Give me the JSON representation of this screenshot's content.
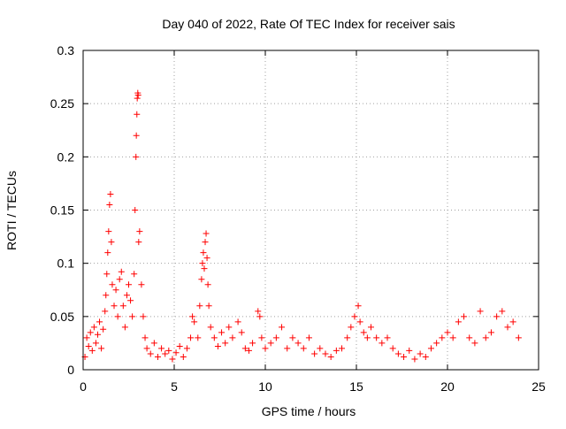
{
  "chart_data": {
    "type": "scatter",
    "title": "Day 040 of 2022, Rate Of TEC Index for receiver sais",
    "xlabel": "GPS time / hours",
    "ylabel": "ROTI / TECUs",
    "xlim": [
      0,
      25
    ],
    "ylim": [
      0,
      0.3
    ],
    "x_ticks": [
      0,
      5,
      10,
      15,
      20,
      25
    ],
    "x_tick_labels": [
      "0",
      "5",
      "10",
      "15",
      "20",
      "25"
    ],
    "y_ticks": [
      0,
      0.05,
      0.1,
      0.15,
      0.2,
      0.25,
      0.3
    ],
    "y_tick_labels": [
      "0",
      "0.05",
      "0.1",
      "0.15",
      "0.2",
      "0.25",
      "0.3"
    ],
    "grid": true,
    "marker": "+",
    "marker_color": "#ff0000",
    "series": [
      {
        "name": "",
        "points": [
          [
            0.1,
            0.012
          ],
          [
            0.2,
            0.03
          ],
          [
            0.3,
            0.022
          ],
          [
            0.4,
            0.035
          ],
          [
            0.5,
            0.018
          ],
          [
            0.6,
            0.04
          ],
          [
            0.7,
            0.025
          ],
          [
            0.8,
            0.033
          ],
          [
            0.9,
            0.045
          ],
          [
            1.0,
            0.02
          ],
          [
            1.1,
            0.038
          ],
          [
            1.2,
            0.055
          ],
          [
            1.25,
            0.07
          ],
          [
            1.3,
            0.09
          ],
          [
            1.35,
            0.11
          ],
          [
            1.4,
            0.13
          ],
          [
            1.45,
            0.155
          ],
          [
            1.5,
            0.165
          ],
          [
            1.55,
            0.12
          ],
          [
            1.6,
            0.08
          ],
          [
            1.7,
            0.06
          ],
          [
            1.8,
            0.075
          ],
          [
            1.9,
            0.05
          ],
          [
            2.0,
            0.085
          ],
          [
            2.1,
            0.092
          ],
          [
            2.2,
            0.06
          ],
          [
            2.3,
            0.04
          ],
          [
            2.4,
            0.07
          ],
          [
            2.5,
            0.08
          ],
          [
            2.6,
            0.065
          ],
          [
            2.7,
            0.05
          ],
          [
            2.8,
            0.09
          ],
          [
            2.85,
            0.15
          ],
          [
            2.9,
            0.2
          ],
          [
            2.92,
            0.22
          ],
          [
            2.95,
            0.24
          ],
          [
            2.97,
            0.255
          ],
          [
            3.0,
            0.26
          ],
          [
            3.02,
            0.258
          ],
          [
            3.05,
            0.12
          ],
          [
            3.1,
            0.13
          ],
          [
            3.2,
            0.08
          ],
          [
            3.3,
            0.05
          ],
          [
            3.4,
            0.03
          ],
          [
            3.5,
            0.02
          ],
          [
            3.7,
            0.015
          ],
          [
            3.9,
            0.025
          ],
          [
            4.1,
            0.012
          ],
          [
            4.3,
            0.02
          ],
          [
            4.5,
            0.015
          ],
          [
            4.7,
            0.018
          ],
          [
            4.9,
            0.01
          ],
          [
            5.1,
            0.016
          ],
          [
            5.3,
            0.022
          ],
          [
            5.5,
            0.012
          ],
          [
            5.7,
            0.02
          ],
          [
            5.9,
            0.03
          ],
          [
            6.0,
            0.05
          ],
          [
            6.1,
            0.045
          ],
          [
            6.3,
            0.03
          ],
          [
            6.4,
            0.06
          ],
          [
            6.5,
            0.085
          ],
          [
            6.55,
            0.1
          ],
          [
            6.6,
            0.11
          ],
          [
            6.65,
            0.095
          ],
          [
            6.7,
            0.12
          ],
          [
            6.75,
            0.128
          ],
          [
            6.8,
            0.105
          ],
          [
            6.85,
            0.08
          ],
          [
            6.9,
            0.06
          ],
          [
            7.0,
            0.04
          ],
          [
            7.2,
            0.03
          ],
          [
            7.4,
            0.022
          ],
          [
            7.6,
            0.035
          ],
          [
            7.8,
            0.025
          ],
          [
            8.0,
            0.04
          ],
          [
            8.2,
            0.03
          ],
          [
            8.5,
            0.045
          ],
          [
            8.7,
            0.035
          ],
          [
            8.9,
            0.02
          ],
          [
            9.1,
            0.018
          ],
          [
            9.3,
            0.025
          ],
          [
            9.6,
            0.055
          ],
          [
            9.7,
            0.05
          ],
          [
            9.8,
            0.03
          ],
          [
            10.0,
            0.02
          ],
          [
            10.3,
            0.025
          ],
          [
            10.6,
            0.03
          ],
          [
            10.9,
            0.04
          ],
          [
            11.2,
            0.02
          ],
          [
            11.5,
            0.03
          ],
          [
            11.8,
            0.025
          ],
          [
            12.1,
            0.02
          ],
          [
            12.4,
            0.03
          ],
          [
            12.7,
            0.015
          ],
          [
            13.0,
            0.02
          ],
          [
            13.3,
            0.015
          ],
          [
            13.6,
            0.012
          ],
          [
            13.9,
            0.018
          ],
          [
            14.2,
            0.02
          ],
          [
            14.5,
            0.03
          ],
          [
            14.7,
            0.04
          ],
          [
            14.9,
            0.05
          ],
          [
            15.1,
            0.06
          ],
          [
            15.2,
            0.045
          ],
          [
            15.4,
            0.035
          ],
          [
            15.6,
            0.03
          ],
          [
            15.8,
            0.04
          ],
          [
            16.1,
            0.03
          ],
          [
            16.4,
            0.025
          ],
          [
            16.7,
            0.03
          ],
          [
            17.0,
            0.02
          ],
          [
            17.3,
            0.015
          ],
          [
            17.6,
            0.012
          ],
          [
            17.9,
            0.018
          ],
          [
            18.2,
            0.01
          ],
          [
            18.5,
            0.015
          ],
          [
            18.8,
            0.012
          ],
          [
            19.1,
            0.02
          ],
          [
            19.4,
            0.025
          ],
          [
            19.7,
            0.03
          ],
          [
            20.0,
            0.035
          ],
          [
            20.3,
            0.03
          ],
          [
            20.6,
            0.045
          ],
          [
            20.9,
            0.05
          ],
          [
            21.2,
            0.03
          ],
          [
            21.5,
            0.025
          ],
          [
            21.8,
            0.055
          ],
          [
            22.1,
            0.03
          ],
          [
            22.4,
            0.035
          ],
          [
            22.7,
            0.05
          ],
          [
            23.0,
            0.055
          ],
          [
            23.3,
            0.04
          ],
          [
            23.6,
            0.045
          ],
          [
            23.9,
            0.03
          ]
        ]
      }
    ]
  }
}
